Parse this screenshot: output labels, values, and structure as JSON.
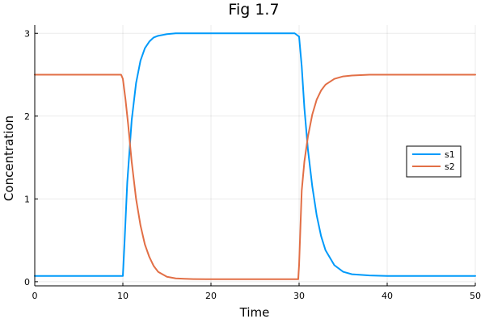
{
  "chart_data": {
    "type": "line",
    "title": "Fig 1.7",
    "xlabel": "Time",
    "ylabel": "Concentration",
    "xlim": [
      0,
      50
    ],
    "ylim": [
      -0.05,
      3.1
    ],
    "xticks": [
      0,
      10,
      20,
      30,
      40,
      50
    ],
    "yticks": [
      0,
      1,
      2,
      3
    ],
    "grid": true,
    "legend_position": "right",
    "series": [
      {
        "name": "s1",
        "color": "#009AFA",
        "x": [
          0,
          5,
          10,
          10.2,
          10.5,
          11,
          11.5,
          12,
          12.5,
          13,
          13.5,
          14,
          15,
          16,
          17,
          18,
          20,
          25,
          29.5,
          30,
          30.3,
          30.6,
          31,
          31.5,
          32,
          32.5,
          33,
          34,
          35,
          36,
          38,
          40,
          45,
          50
        ],
        "y": [
          0.07,
          0.07,
          0.07,
          0.5,
          1.2,
          1.95,
          2.4,
          2.67,
          2.82,
          2.9,
          2.95,
          2.97,
          2.99,
          3.0,
          3.0,
          3.0,
          3.0,
          3.0,
          3.0,
          2.96,
          2.6,
          2.1,
          1.6,
          1.15,
          0.8,
          0.55,
          0.38,
          0.2,
          0.12,
          0.09,
          0.075,
          0.07,
          0.07,
          0.07
        ]
      },
      {
        "name": "s2",
        "color": "#E26F46",
        "x": [
          0,
          5,
          9.8,
          10,
          10.3,
          10.6,
          11,
          11.5,
          12,
          12.5,
          13,
          13.5,
          14,
          15,
          16,
          17,
          18,
          20,
          25,
          29.9,
          30,
          30.3,
          30.6,
          31,
          31.5,
          32,
          32.5,
          33,
          34,
          35,
          36,
          38,
          40,
          45,
          50
        ],
        "y": [
          2.5,
          2.5,
          2.5,
          2.45,
          2.2,
          1.9,
          1.45,
          1.0,
          0.68,
          0.45,
          0.3,
          0.19,
          0.12,
          0.06,
          0.04,
          0.035,
          0.032,
          0.03,
          0.03,
          0.03,
          0.2,
          1.1,
          1.45,
          1.75,
          2.02,
          2.2,
          2.31,
          2.38,
          2.45,
          2.48,
          2.49,
          2.5,
          2.5,
          2.5,
          2.5
        ]
      }
    ]
  }
}
